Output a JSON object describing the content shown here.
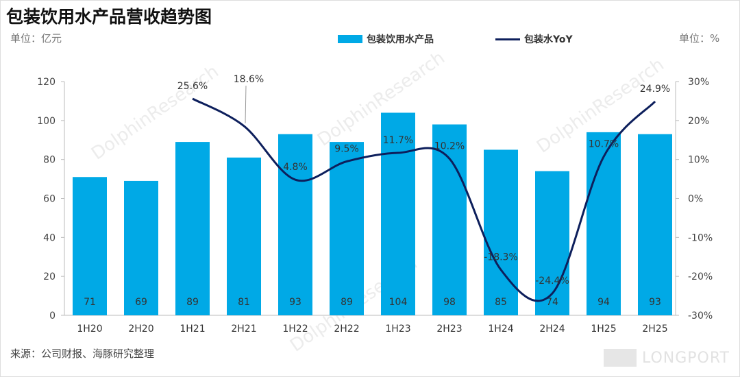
{
  "title": "包装饮用水产品营收趋势图",
  "unit_left": "单位：亿元",
  "unit_right": "单位：%",
  "source": "来源：公司财报、海豚研究整理",
  "watermark": "DolphinResearch",
  "logo": "LONGPORT",
  "colors": {
    "bar": "#00A9E6",
    "line": "#0D1F5C"
  },
  "chart_data": {
    "type": "bar+line",
    "title": "包装饮用水产品营收趋势图",
    "categories": [
      "1H20",
      "2H20",
      "1H21",
      "2H21",
      "1H22",
      "2H22",
      "1H23",
      "2H23",
      "1H24",
      "2H24",
      "1H25",
      "2H25"
    ],
    "series": [
      {
        "name": "包装饮用水产品",
        "type": "bar",
        "axis": "left",
        "values": [
          71,
          69,
          89,
          81,
          93,
          89,
          104,
          98,
          85,
          74,
          94,
          93
        ]
      },
      {
        "name": "包装水YoY",
        "type": "line",
        "axis": "right",
        "values": [
          null,
          null,
          25.6,
          18.6,
          4.8,
          9.5,
          11.7,
          10.2,
          -18.3,
          -24.4,
          10.7,
          24.9
        ],
        "labels": [
          "",
          "",
          "25.6%",
          "18.6%",
          "4.8%",
          "9.5%",
          "11.7%",
          "10.2%",
          "-18.3%",
          "-24.4%",
          "10.7%",
          "24.9%"
        ]
      }
    ],
    "ylim_left": [
      0,
      120
    ],
    "yticks_left": [
      "0",
      "20",
      "40",
      "60",
      "80",
      "100",
      "120"
    ],
    "ylim_right": [
      -30,
      30
    ],
    "yticks_right": [
      "-30%",
      "-20%",
      "-10%",
      "0%",
      "10%",
      "20%",
      "30%"
    ],
    "legend": "top",
    "grid": false
  }
}
